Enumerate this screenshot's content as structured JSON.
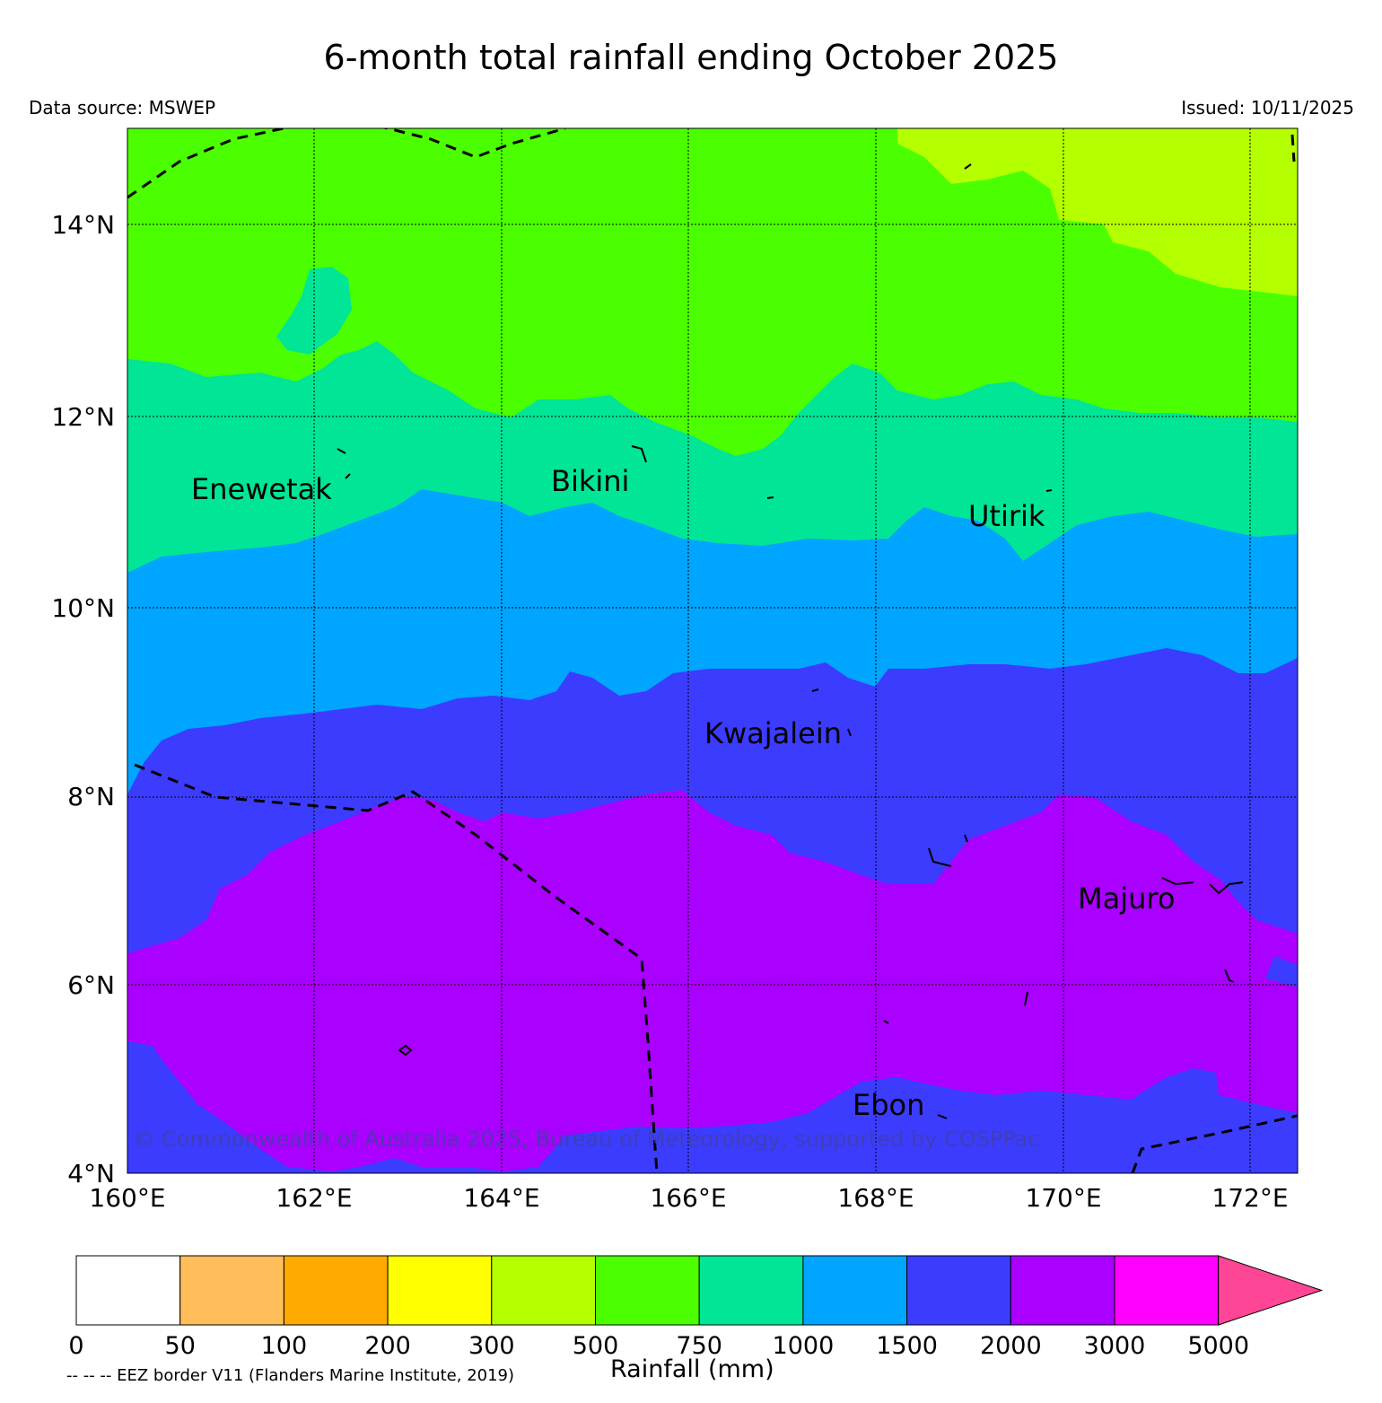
{
  "title": "6-month total rainfall ending October 2025",
  "data_source": "Data source: MSWEP",
  "issued": "Issued: 10/11/2025",
  "copyright": "© Commonwealth of Australia 2025, Bureau of Meteorology, supported by COSPPac",
  "map": {
    "lon_range": [
      160,
      172.5
    ],
    "lat_range": [
      4,
      15
    ],
    "lon_labels": [
      "160°E",
      "162°E",
      "164°E",
      "166°E",
      "168°E",
      "170°E",
      "172°E"
    ],
    "lat_labels": [
      "14°N",
      "12°N",
      "10°N",
      "8°N",
      "6°N",
      "4°N"
    ],
    "places": [
      "Enewetak",
      "Bikini",
      "Utirik",
      "Kwajalein",
      "Majuro",
      "Ebon"
    ]
  },
  "legend": {
    "title": "Rainfall (mm)",
    "note": "-- -- -- EEZ border V11 (Flanders Marine Institute, 2019)",
    "ticks": [
      "0",
      "50",
      "100",
      "200",
      "300",
      "500",
      "750",
      "1000",
      "1500",
      "2000",
      "3000",
      "5000"
    ],
    "colors": [
      "#ffffff",
      "#ffbe5a",
      "#ffaa00",
      "#ffff00",
      "#b4ff00",
      "#4cff00",
      "#00e696",
      "#00a5ff",
      "#3c3cff",
      "#aa00ff",
      "#ff00ff",
      "#ff4696"
    ]
  }
}
